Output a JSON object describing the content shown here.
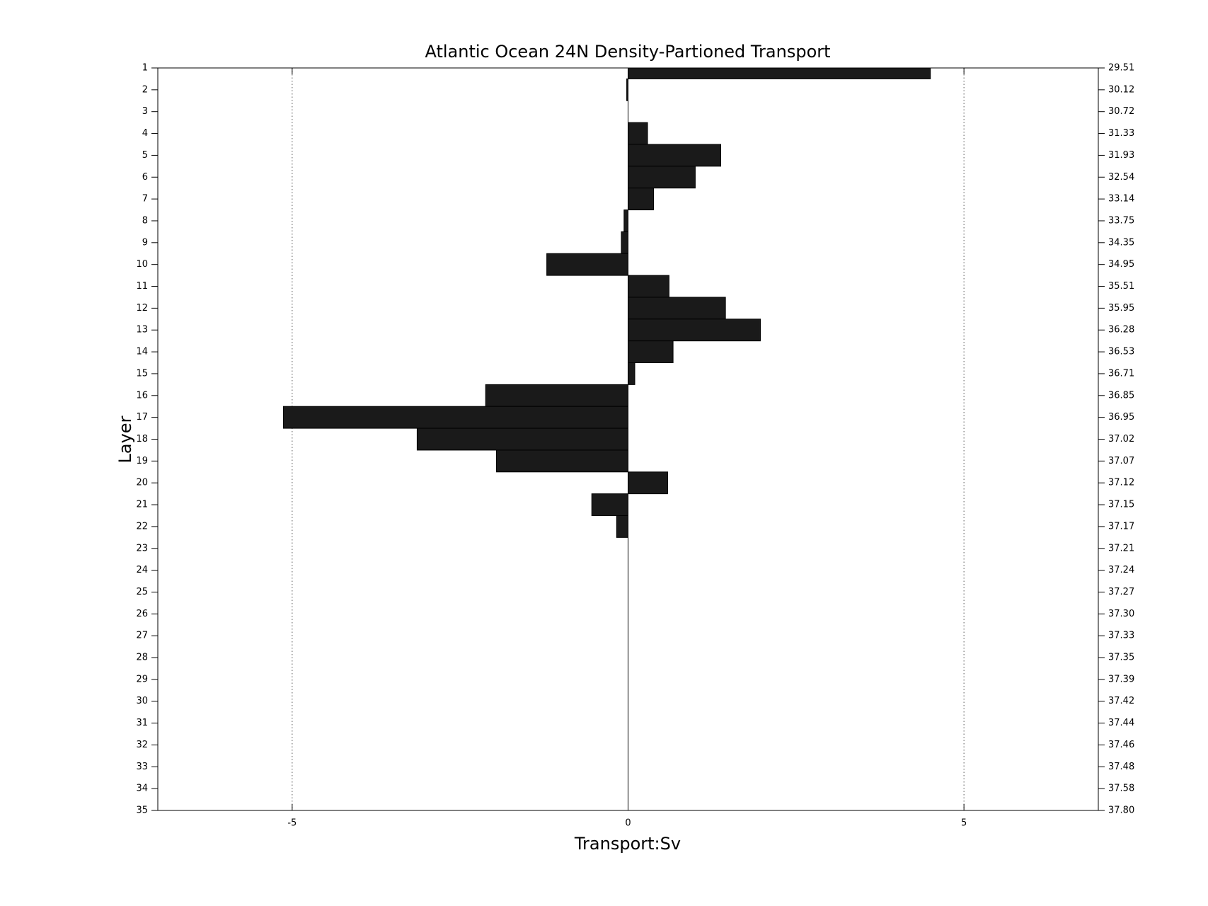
{
  "chart_data": {
    "type": "barh",
    "title": "Atlantic Ocean 24N Density-Partioned Transport",
    "x_label": "Transport:Sv",
    "y_label": "Layer",
    "categories": [
      "1",
      "2",
      "3",
      "4",
      "5",
      "6",
      "7",
      "8",
      "9",
      "10",
      "11",
      "12",
      "13",
      "14",
      "15",
      "16",
      "17",
      "18",
      "19",
      "20",
      "21",
      "22",
      "23",
      "24",
      "25",
      "26",
      "27",
      "28",
      "29",
      "30",
      "31",
      "32",
      "33",
      "34",
      "35"
    ],
    "right_categories": [
      "29.51",
      "30.12",
      "30.72",
      "31.33",
      "31.93",
      "32.54",
      "33.14",
      "33.75",
      "34.35",
      "34.95",
      "35.51",
      "35.95",
      "36.28",
      "36.53",
      "36.71",
      "36.85",
      "36.95",
      "37.02",
      "37.07",
      "37.12",
      "37.15",
      "37.17",
      "37.21",
      "37.24",
      "37.27",
      "37.30",
      "37.33",
      "37.35",
      "37.39",
      "37.42",
      "37.44",
      "37.46",
      "37.48",
      "37.58",
      "37.80"
    ],
    "values": [
      4.5,
      -0.02,
      0,
      0.29,
      1.38,
      1.0,
      0.38,
      -0.06,
      -0.1,
      -1.21,
      0.61,
      1.45,
      1.97,
      0.67,
      0.1,
      -2.12,
      -5.13,
      -3.14,
      -1.96,
      0.59,
      -0.54,
      -0.17,
      0,
      0,
      0,
      0,
      0,
      0,
      0,
      0,
      0,
      0,
      0,
      0,
      0
    ],
    "color": "#1a1a1a",
    "xlim": [
      -7,
      7
    ],
    "xticks": [
      -5,
      0,
      5
    ],
    "grid": true
  }
}
